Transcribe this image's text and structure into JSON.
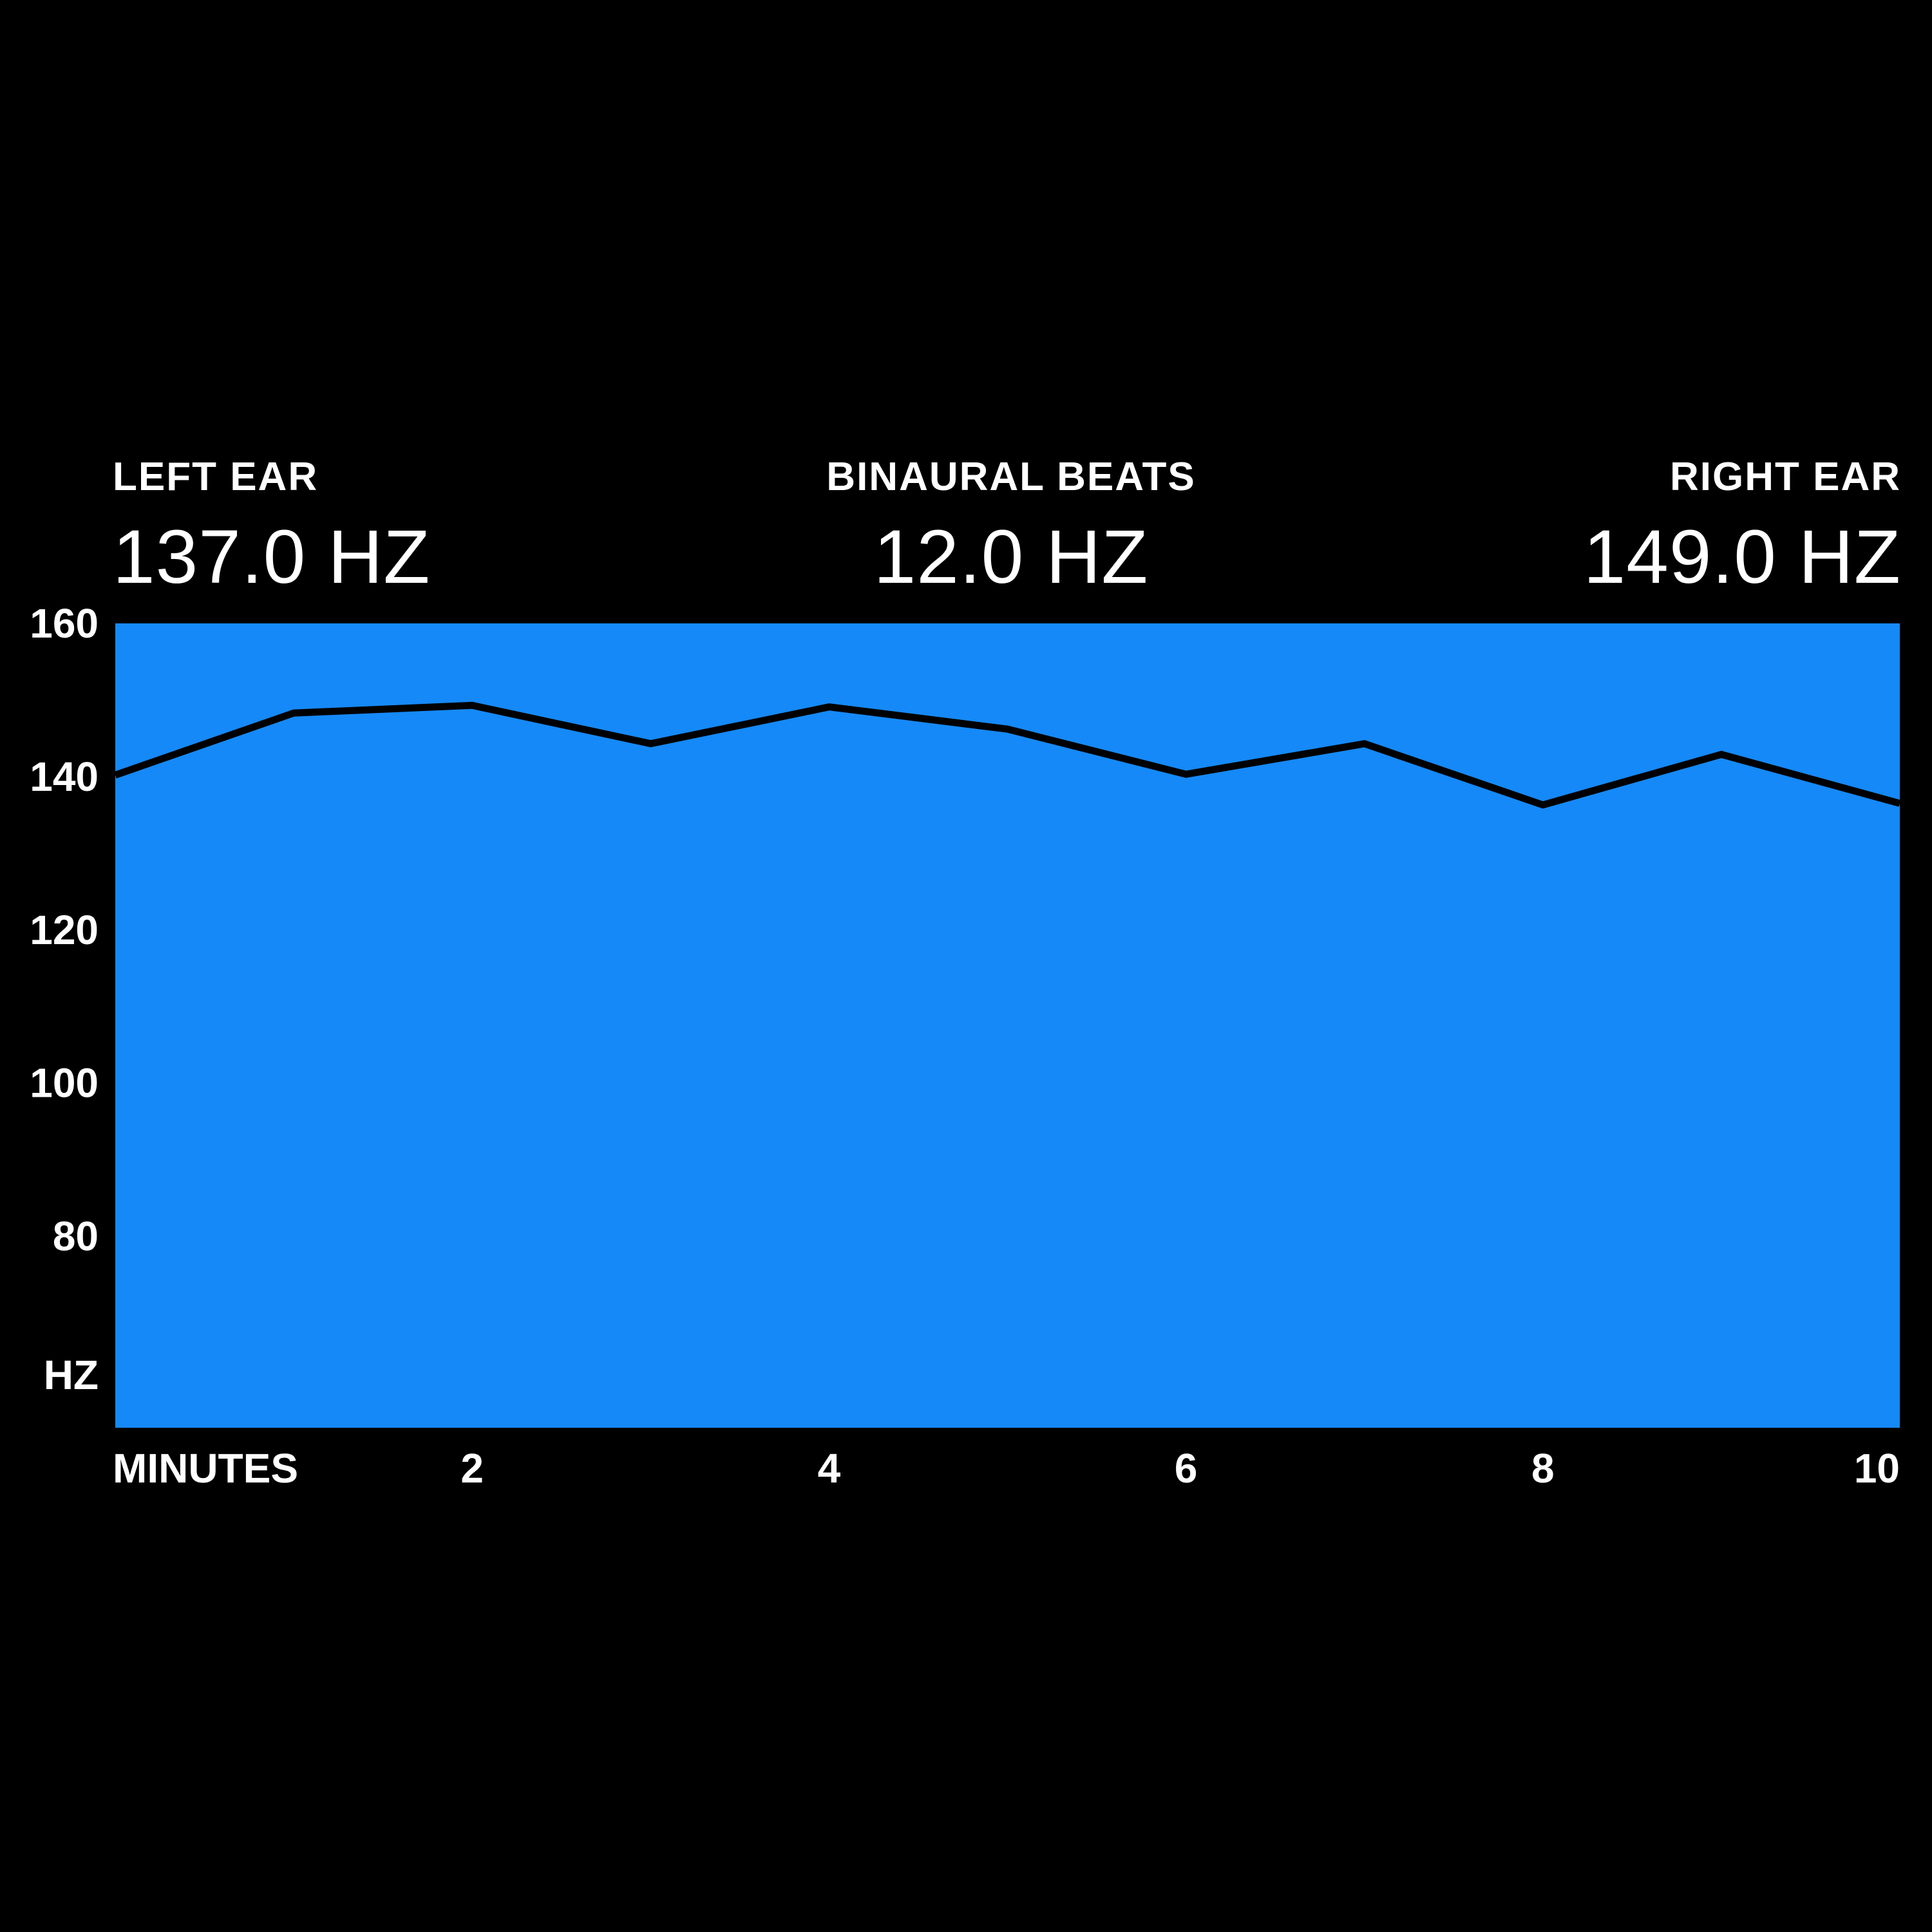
{
  "header": {
    "left_label": "LEFT EAR",
    "left_value": "137.0 HZ",
    "center_label": "BINAURAL BEATS",
    "center_value": "12.0 HZ",
    "right_label": "RIGHT EAR",
    "right_value": "149.0 HZ"
  },
  "chart_data": {
    "type": "area",
    "title": "",
    "xlabel": "MINUTES",
    "ylabel": "HZ",
    "xlim": [
      0,
      10
    ],
    "ylim": [
      55,
      160
    ],
    "y_ticks": [
      160,
      140,
      120,
      100,
      80
    ],
    "y_tick_labels": [
      "160",
      "140",
      "120",
      "100",
      "80"
    ],
    "x_ticks": [
      2,
      4,
      6,
      8,
      10
    ],
    "x_tick_labels": [
      "2",
      "4",
      "6",
      "8",
      "10"
    ],
    "grid": false,
    "fill_color": "#1589F7",
    "line_color": "#000000",
    "series": [
      {
        "x": [
          0,
          1,
          2,
          3,
          4,
          5,
          6,
          7,
          8,
          9,
          10
        ],
        "values": [
          140.2,
          148.3,
          149.3,
          144.3,
          149.1,
          146.2,
          140.3,
          144.3,
          136.3,
          142.9,
          136.5
        ]
      }
    ]
  }
}
